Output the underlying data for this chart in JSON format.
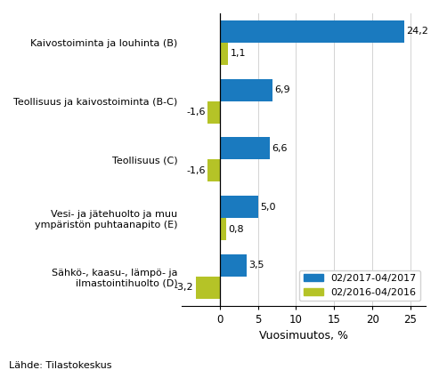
{
  "categories": [
    "Kaivostoiminta ja louhinta (B)",
    "Teollisuus ja kaivostoiminta (B-C)",
    "Teollisuus (C)",
    "Vesi- ja jätehuolto ja muu\nympäristön puhtaanapito (E)",
    "Sähkö-, kaasu-, lämpö- ja\nilmastointihuolto (D)"
  ],
  "series_2017": [
    24.2,
    6.9,
    6.6,
    5.0,
    3.5
  ],
  "series_2016": [
    1.1,
    -1.6,
    -1.6,
    0.8,
    -3.2
  ],
  "color_2017": "#1a7abf",
  "color_2016": "#b5c327",
  "legend_2017": "02/2017-04/2017",
  "legend_2016": "02/2016-04/2016",
  "xlabel": "Vuosimuutos, %",
  "source": "Lähde: Tilastokeskus",
  "bar_height": 0.38
}
